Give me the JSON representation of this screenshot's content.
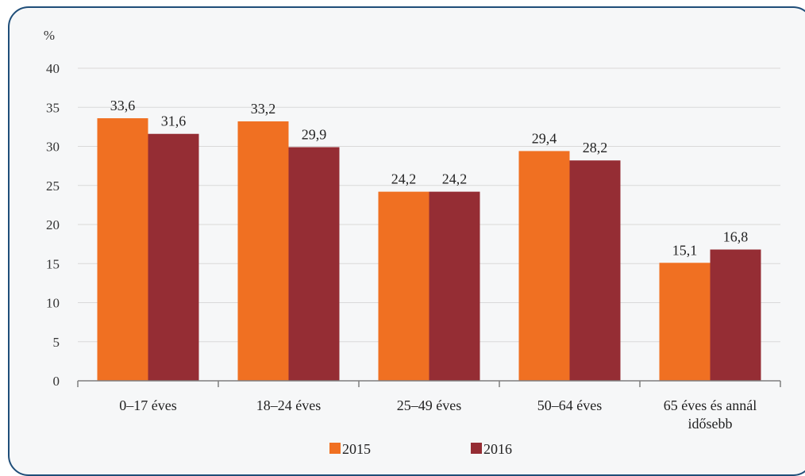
{
  "chart_data": {
    "type": "bar",
    "unit_label": "%",
    "categories": [
      [
        "0–17 éves"
      ],
      [
        "18–24 éves"
      ],
      [
        "25–49 éves"
      ],
      [
        "50–64 éves"
      ],
      [
        "65 éves és annál",
        "idősebb"
      ]
    ],
    "series": [
      {
        "name": "2015",
        "color": "#f07022",
        "values": [
          33.6,
          33.2,
          24.2,
          29.4,
          15.1
        ],
        "labels": [
          "33,6",
          "33,2",
          "24,2",
          "29,4",
          "15,1"
        ]
      },
      {
        "name": "2016",
        "color": "#952d34",
        "values": [
          31.6,
          29.9,
          24.2,
          28.2,
          16.8
        ],
        "labels": [
          "31,6",
          "29,9",
          "24,2",
          "28,2",
          "16,8"
        ]
      }
    ],
    "ylim": [
      0,
      40
    ],
    "yticks": [
      0,
      5,
      10,
      15,
      20,
      25,
      30,
      35,
      40
    ],
    "grid": true,
    "legend_position": "bottom"
  }
}
